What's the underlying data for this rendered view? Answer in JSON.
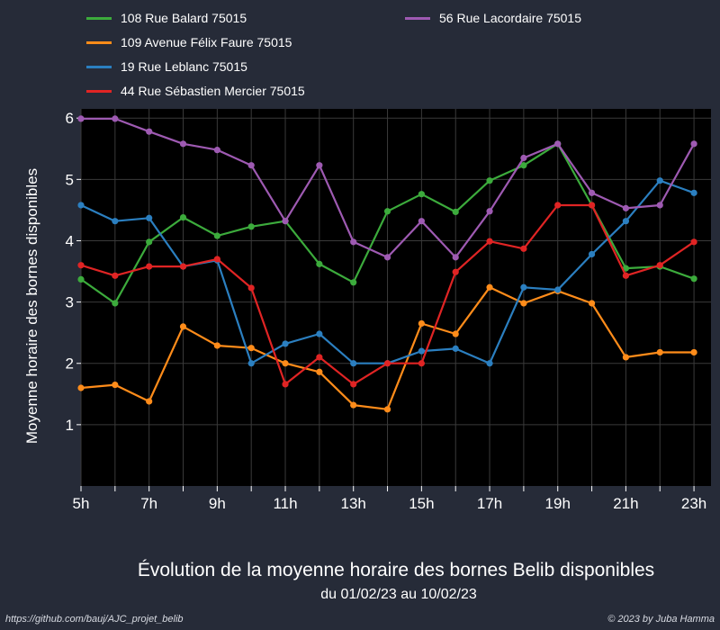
{
  "chart_data": {
    "type": "line",
    "title": "Évolution de la moyenne horaire des bornes Belib disponibles",
    "subtitle": "du 01/02/23 au 10/02/23",
    "xlabel": "",
    "ylabel": "Moyenne horaire des bornes disponibles",
    "x": [
      5,
      6,
      7,
      8,
      9,
      10,
      11,
      12,
      13,
      14,
      15,
      16,
      17,
      18,
      19,
      20,
      21,
      22,
      23
    ],
    "xlim": [
      5,
      23.5
    ],
    "ylim": [
      0,
      6.15
    ],
    "xticks": [
      5,
      7,
      9,
      11,
      13,
      15,
      17,
      19,
      21,
      23
    ],
    "xtick_labels": [
      "5h",
      "7h",
      "9h",
      "11h",
      "13h",
      "15h",
      "17h",
      "19h",
      "21h",
      "23h"
    ],
    "yticks": [
      1,
      2,
      3,
      4,
      5,
      6
    ],
    "ytick_labels": [
      "1",
      "2",
      "3",
      "4",
      "5",
      "6"
    ],
    "grid": true,
    "legend_position": "top",
    "series": [
      {
        "name": "108 Rue Balard 75015",
        "color": "#3cab3c",
        "values": [
          3.37,
          2.98,
          3.98,
          4.38,
          4.08,
          4.23,
          4.32,
          3.62,
          3.32,
          4.48,
          4.76,
          4.47,
          4.98,
          5.23,
          5.58,
          4.58,
          3.55,
          3.58,
          3.38
        ]
      },
      {
        "name": "109 Avenue Félix Faure 75015",
        "color": "#ff8c1a",
        "values": [
          1.6,
          1.65,
          1.38,
          2.6,
          2.29,
          2.25,
          2.0,
          1.86,
          1.32,
          1.25,
          2.65,
          2.48,
          3.24,
          2.98,
          3.18,
          2.98,
          2.1,
          2.18,
          2.18
        ]
      },
      {
        "name": "19 Rue Leblanc 75015",
        "color": "#2b7fc0",
        "values": [
          4.58,
          4.32,
          4.37,
          3.58,
          3.68,
          2.0,
          2.32,
          2.48,
          2.0,
          2.0,
          2.2,
          2.24,
          2.0,
          3.24,
          3.2,
          3.78,
          4.32,
          4.98,
          4.78
        ]
      },
      {
        "name": "44 Rue Sébastien Mercier 75015",
        "color": "#e02424",
        "values": [
          3.6,
          3.43,
          3.58,
          3.58,
          3.7,
          3.23,
          1.66,
          2.1,
          1.66,
          2.0,
          2.0,
          3.49,
          3.99,
          3.87,
          4.58,
          4.58,
          3.43,
          3.6,
          3.98
        ]
      },
      {
        "name": "56 Rue Lacordaire 75015",
        "color": "#9e5ab2",
        "values": [
          5.99,
          5.99,
          5.78,
          5.58,
          5.48,
          5.23,
          4.32,
          5.23,
          3.98,
          3.73,
          4.32,
          3.73,
          4.48,
          5.35,
          5.58,
          4.78,
          4.53,
          4.58,
          5.58
        ]
      }
    ]
  },
  "footer": {
    "source": "https://github.com/bauj/AJC_projet_belib",
    "credit": "© 2023 by Juba Hamma"
  }
}
